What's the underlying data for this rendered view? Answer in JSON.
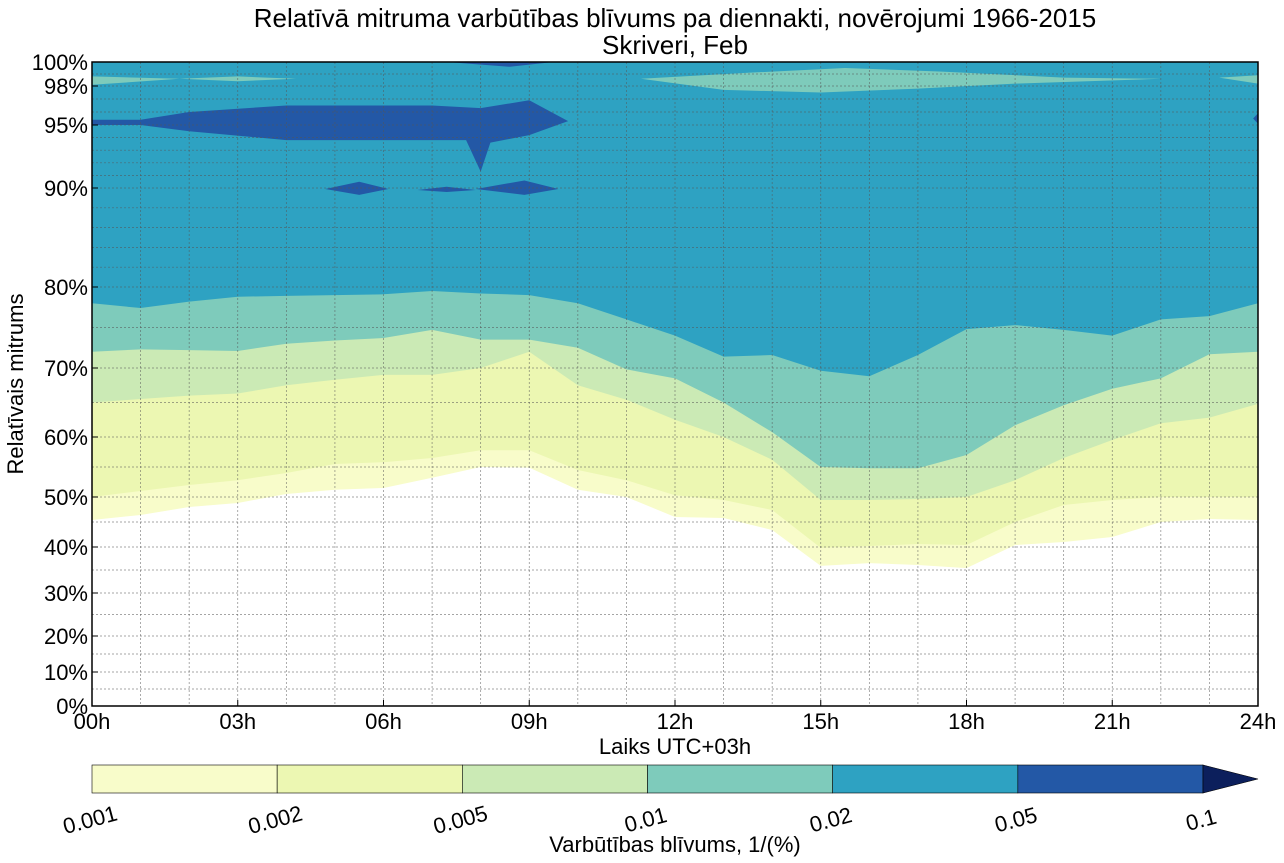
{
  "chart_data": {
    "type": "area",
    "subtype": "filled-contour",
    "title": "Relatīvā mitruma varbūtības blīvums pa diennakti, novērojumi 1966-2015",
    "subtitle": "Skriveri, Feb",
    "xlabel": "Laiks UTC+03h",
    "ylabel": "Relatīvais mitrums",
    "xlim": [
      0,
      24
    ],
    "ylim": [
      0,
      100
    ],
    "x_ticks": [
      0,
      3,
      6,
      9,
      12,
      15,
      18,
      21,
      24
    ],
    "x_tick_labels": [
      "00h",
      "03h",
      "06h",
      "09h",
      "12h",
      "15h",
      "18h",
      "21h",
      "24h"
    ],
    "y_ticks": [
      0,
      10,
      20,
      30,
      40,
      50,
      60,
      70,
      80,
      90,
      95,
      98,
      100
    ],
    "y_tick_labels": [
      "0%",
      "10%",
      "20%",
      "30%",
      "40%",
      "50%",
      "60%",
      "70%",
      "80%",
      "90%",
      "95%",
      "98%",
      "100%"
    ],
    "grid": true,
    "colorbar": {
      "label": "Varbūtības blīvums, 1/(%)",
      "levels": [
        0.001,
        0.002,
        0.005,
        0.01,
        0.02,
        0.05,
        0.1
      ],
      "level_labels": [
        "0.001",
        "0.002",
        "0.005",
        "0.01",
        "0.02",
        "0.05",
        "0.1"
      ],
      "colors": [
        "#f8fcca",
        "#ecf7b2",
        "#cbeab5",
        "#7ecbbb",
        "#2ea2c2",
        "#2358a6",
        "#0c1f5c"
      ],
      "extend": "max",
      "placement": "bottom"
    },
    "hours": [
      0,
      1,
      2,
      3,
      4,
      5,
      6,
      7,
      8,
      9,
      10,
      11,
      12,
      13,
      14,
      15,
      16,
      17,
      18,
      19,
      20,
      21,
      22,
      23,
      24
    ],
    "level_lower_boundaries_rh": [
      {
        "level": 0.001,
        "values": [
          45.4,
          46.4,
          48,
          48.8,
          50.5,
          51.2,
          51.5,
          53.2,
          55,
          54.9,
          51.2,
          50,
          46,
          45.8,
          43.4,
          35.9,
          36.5,
          36.1,
          35.4,
          40.4,
          41,
          42,
          45,
          45.6,
          45.4
        ]
      },
      {
        "level": 0.002,
        "values": [
          50,
          51,
          52,
          52.8,
          54,
          55.5,
          55.8,
          56.5,
          57.8,
          57.8,
          54.5,
          52.8,
          50.3,
          49.4,
          47.4,
          39.8,
          40.2,
          40.6,
          40.4,
          45,
          48.4,
          49.4,
          50,
          50,
          50
        ]
      },
      {
        "level": 0.005,
        "values": [
          65,
          65.5,
          66,
          66.3,
          67.5,
          68.3,
          69,
          69,
          70,
          72,
          67.5,
          65.4,
          62.5,
          60,
          56.2,
          49.4,
          49.4,
          49.6,
          50,
          52.8,
          56.5,
          59.5,
          62,
          62.8,
          64.8
        ]
      },
      {
        "level": 0.01,
        "values": [
          72,
          72.3,
          72.2,
          72.1,
          73,
          73.4,
          73.7,
          74.7,
          73.5,
          73.5,
          72.5,
          69.8,
          68.5,
          65,
          60.7,
          55,
          54.8,
          54.8,
          57,
          61.7,
          64.6,
          67,
          68.5,
          71.7,
          72
        ]
      },
      {
        "level": 0.02,
        "values": [
          78,
          77.4,
          78.2,
          78.8,
          78.9,
          79,
          79.1,
          79.5,
          79.2,
          79,
          78,
          76,
          74,
          71.4,
          71.6,
          69.6,
          68.8,
          71.6,
          74.8,
          75.3,
          74.7,
          74,
          76,
          76.4,
          78
        ]
      }
    ],
    "patches": [
      {
        "level": 0.01,
        "points": [
          [
            0,
            98.8
          ],
          [
            1.8,
            98.6
          ],
          [
            0,
            98.1
          ]
        ]
      },
      {
        "level": 0.01,
        "points": [
          [
            1.8,
            98.6
          ],
          [
            3,
            98.8
          ],
          [
            4.2,
            98.6
          ],
          [
            3,
            98.4
          ]
        ]
      },
      {
        "level": 0.01,
        "points": [
          [
            11.3,
            98.6
          ],
          [
            13.5,
            99.1
          ],
          [
            15.5,
            99.5
          ],
          [
            17.5,
            99.2
          ],
          [
            20,
            98.7
          ],
          [
            22,
            98.6
          ],
          [
            19,
            98.2
          ],
          [
            17,
            97.8
          ],
          [
            15,
            97.5
          ],
          [
            13,
            97.7
          ]
        ]
      },
      {
        "level": 0.01,
        "points": [
          [
            23.2,
            98.7
          ],
          [
            24,
            98.9
          ],
          [
            24,
            98.2
          ]
        ]
      },
      {
        "level": 0.05,
        "points": [
          [
            0,
            95.4
          ],
          [
            1,
            95.4
          ],
          [
            2,
            96
          ],
          [
            4,
            96.5
          ],
          [
            7,
            96.5
          ],
          [
            8,
            96.3
          ],
          [
            9,
            96.9
          ],
          [
            9.8,
            95.3
          ],
          [
            9,
            94.2
          ],
          [
            8.2,
            93.6
          ],
          [
            8,
            91.3
          ],
          [
            7.7,
            93.8
          ],
          [
            7,
            93.8
          ],
          [
            4,
            93.8
          ],
          [
            2,
            94.5
          ],
          [
            1,
            95
          ],
          [
            0,
            95
          ]
        ]
      },
      {
        "level": 0.05,
        "points": [
          [
            4.8,
            89.9
          ],
          [
            5.5,
            90.5
          ],
          [
            6.1,
            89.9
          ],
          [
            5.5,
            89.3
          ]
        ]
      },
      {
        "level": 0.05,
        "points": [
          [
            6.7,
            89.8
          ],
          [
            7.3,
            90.1
          ],
          [
            7.9,
            89.8
          ],
          [
            7.3,
            89.6
          ]
        ]
      },
      {
        "level": 0.05,
        "points": [
          [
            7.9,
            89.9
          ],
          [
            8.9,
            90.6
          ],
          [
            9.6,
            89.9
          ],
          [
            8.9,
            89.3
          ]
        ]
      },
      {
        "level": 0.05,
        "points": [
          [
            7.3,
            100
          ],
          [
            9.5,
            100
          ],
          [
            8.6,
            99.6
          ]
        ]
      },
      {
        "level": 0.05,
        "points": [
          [
            23.9,
            95.5
          ],
          [
            24,
            95.9
          ],
          [
            24,
            95.1
          ]
        ]
      }
    ]
  }
}
